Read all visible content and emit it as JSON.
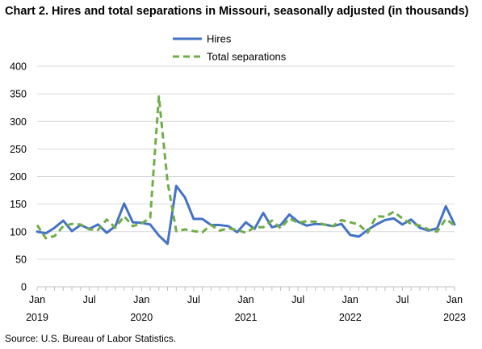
{
  "title": "Chart 2. Hires and total separations in Missouri, seasonally adjusted (in thousands)",
  "source": "Source: U.S. Bureau of Labor Statistics.",
  "chart_data": {
    "type": "line",
    "title": "Chart 2. Hires and total separations in Missouri, seasonally adjusted (in thousands)",
    "xlabel": "",
    "ylabel": "",
    "ylim": [
      0,
      400
    ],
    "yticks": [
      0,
      50,
      100,
      150,
      200,
      250,
      300,
      350,
      400
    ],
    "grid": true,
    "legend": "top-center",
    "x_start": "2019-01",
    "x_end": "2023-01",
    "x_tick_labels": [
      {
        "month": "Jan",
        "year": "2019",
        "x": "2019-01"
      },
      {
        "month": "Jul",
        "year": "",
        "x": "2019-07"
      },
      {
        "month": "Jan",
        "year": "2020",
        "x": "2020-01"
      },
      {
        "month": "Jul",
        "year": "",
        "x": "2020-07"
      },
      {
        "month": "Jan",
        "year": "2021",
        "x": "2021-01"
      },
      {
        "month": "Jul",
        "year": "",
        "x": "2021-07"
      },
      {
        "month": "Jan",
        "year": "2022",
        "x": "2022-01"
      },
      {
        "month": "Jul",
        "year": "",
        "x": "2022-07"
      },
      {
        "month": "Jan",
        "year": "2023",
        "x": "2023-01"
      }
    ],
    "series": [
      {
        "name": "Hires",
        "color": "#4472C4",
        "style": "solid",
        "values": [
          100,
          97,
          107,
          120,
          101,
          112,
          105,
          113,
          98,
          110,
          151,
          117,
          116,
          113,
          93,
          78,
          183,
          162,
          123,
          123,
          112,
          112,
          110,
          99,
          117,
          105,
          134,
          108,
          112,
          131,
          118,
          111,
          114,
          113,
          110,
          114,
          94,
          91,
          103,
          113,
          121,
          124,
          113,
          122,
          107,
          102,
          106,
          146,
          113
        ]
      },
      {
        "name": "Total separations",
        "color": "#70AD47",
        "style": "dashed",
        "values": [
          112,
          88,
          92,
          110,
          114,
          113,
          104,
          103,
          122,
          107,
          128,
          110,
          115,
          125,
          345,
          190,
          101,
          104,
          101,
          99,
          112,
          102,
          106,
          103,
          98,
          108,
          108,
          120,
          106,
          124,
          116,
          119,
          118,
          113,
          110,
          121,
          117,
          113,
          98,
          128,
          127,
          136,
          124,
          114,
          111,
          104,
          100,
          123,
          111
        ]
      }
    ]
  }
}
